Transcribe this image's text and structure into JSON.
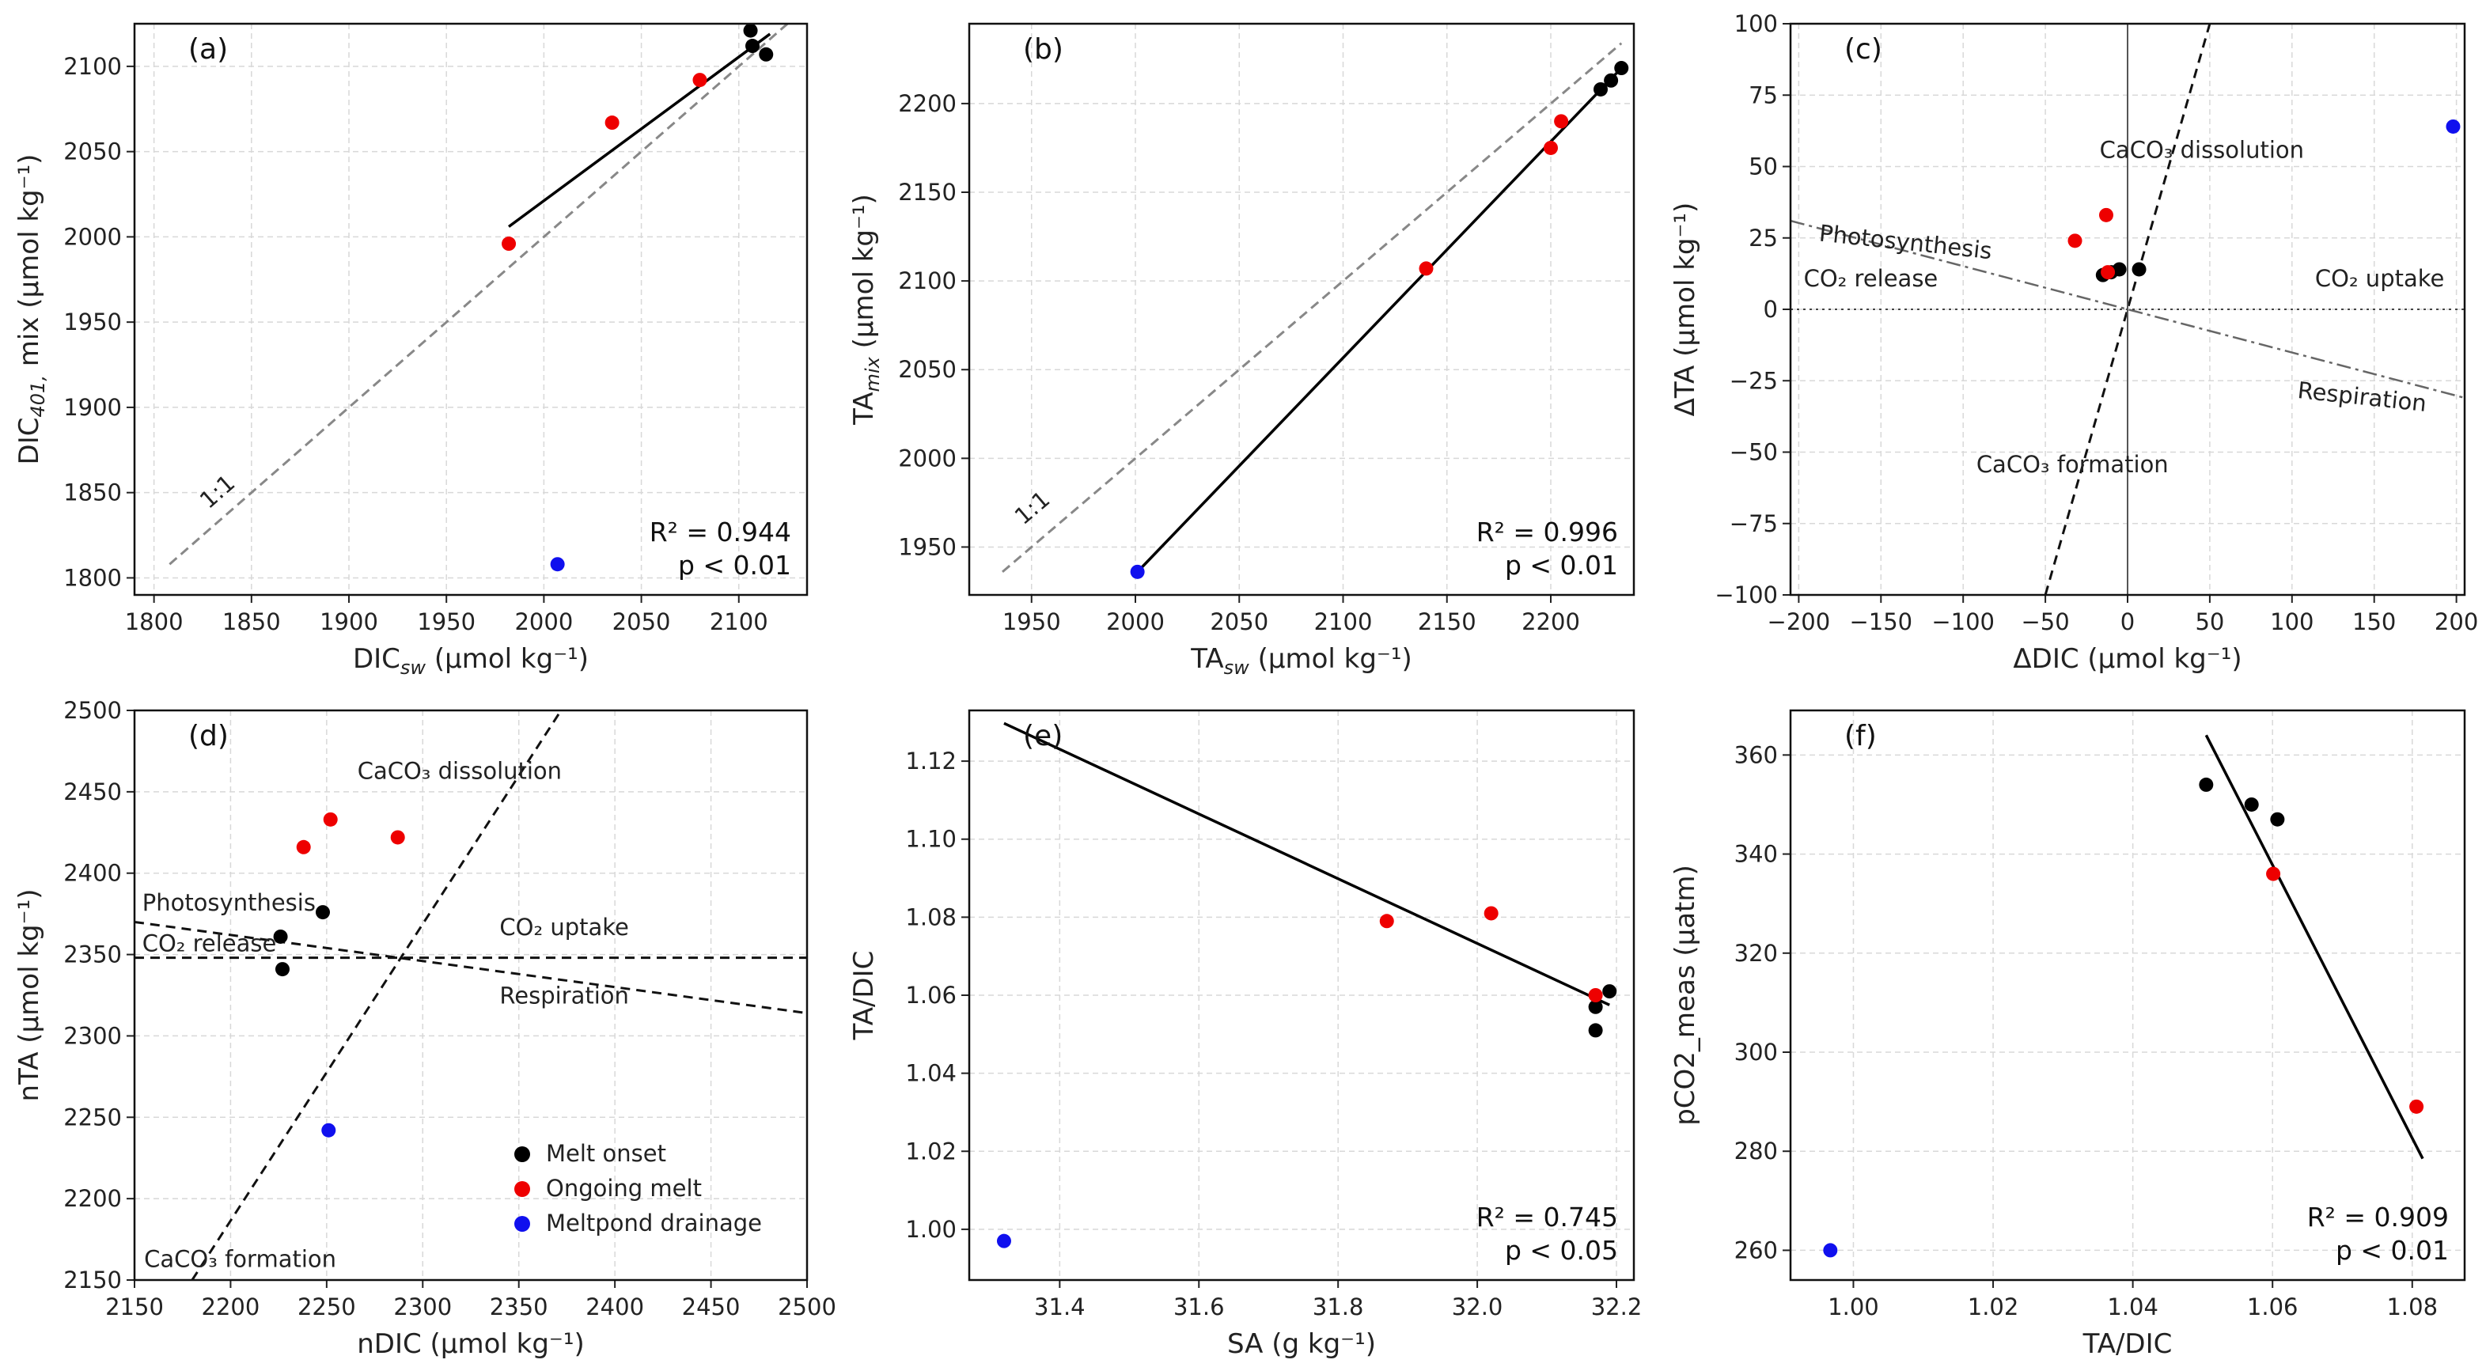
{
  "colors": {
    "melt_onset": "#000000",
    "ongoing_melt": "#ee0000",
    "meltpond_drainage": "#1010ee",
    "grid": "#d8d8d8",
    "one_to_one": "#888888",
    "reference": "#333333"
  },
  "legend": [
    {
      "key": "melt_onset",
      "label": "Melt onset"
    },
    {
      "key": "ongoing_melt",
      "label": "Ongoing melt"
    },
    {
      "key": "meltpond_drainage",
      "label": "Meltpond drainage"
    }
  ],
  "chart_data": [
    {
      "id": "a",
      "panel_label": "(a)",
      "type": "scatter",
      "xlabel": "DIC_sw (µmol kg⁻¹)",
      "ylabel": "DIC_401, mix (µmol kg⁻¹)",
      "xlim": [
        1790,
        2135
      ],
      "ylim": [
        1790,
        2125
      ],
      "xticks": [
        1800,
        1850,
        1900,
        1950,
        2000,
        2050,
        2100
      ],
      "yticks": [
        1800,
        1850,
        1900,
        1950,
        2000,
        2050,
        2100
      ],
      "points": [
        {
          "x": 2106,
          "y": 2121,
          "group": "melt_onset"
        },
        {
          "x": 2107,
          "y": 2112,
          "group": "melt_onset"
        },
        {
          "x": 2114,
          "y": 2107,
          "group": "melt_onset"
        },
        {
          "x": 2080,
          "y": 2092,
          "group": "ongoing_melt"
        },
        {
          "x": 2035,
          "y": 2067,
          "group": "ongoing_melt"
        },
        {
          "x": 1982,
          "y": 1996,
          "group": "ongoing_melt"
        },
        {
          "x": 2007,
          "y": 1808,
          "group": "meltpond_drainage"
        }
      ],
      "fit": {
        "x": [
          1982,
          2116
        ],
        "y": [
          2006,
          2119
        ]
      },
      "one_to_one": {
        "x": [
          1808,
          2125
        ],
        "y": [
          1808,
          2125
        ],
        "label": "1:1",
        "label_at": [
          1828,
          1840
        ]
      },
      "stats": [
        "R² = 0.944",
        "p < 0.01"
      ]
    },
    {
      "id": "b",
      "panel_label": "(b)",
      "type": "scatter",
      "xlabel": "TA_sw (µmol kg⁻¹)",
      "ylabel": "TA_mix (µmol kg⁻¹)",
      "xlim": [
        1920,
        2240
      ],
      "ylim": [
        1923,
        2245
      ],
      "xticks": [
        1950,
        2000,
        2050,
        2100,
        2150,
        2200
      ],
      "yticks": [
        1950,
        2000,
        2050,
        2100,
        2150,
        2200
      ],
      "points": [
        {
          "x": 2234,
          "y": 2220,
          "group": "melt_onset"
        },
        {
          "x": 2229,
          "y": 2213,
          "group": "melt_onset"
        },
        {
          "x": 2224,
          "y": 2208,
          "group": "melt_onset"
        },
        {
          "x": 2205,
          "y": 2190,
          "group": "ongoing_melt"
        },
        {
          "x": 2200,
          "y": 2175,
          "group": "ongoing_melt"
        },
        {
          "x": 2140,
          "y": 2107,
          "group": "ongoing_melt"
        },
        {
          "x": 2001,
          "y": 1936,
          "group": "meltpond_drainage"
        }
      ],
      "fit": {
        "x": [
          2001,
          2234
        ],
        "y": [
          1936,
          2220
        ]
      },
      "one_to_one": {
        "x": [
          1936,
          2234
        ],
        "y": [
          1936,
          2234
        ],
        "label": "1:1",
        "label_at": [
          1946,
          1962
        ]
      },
      "stats": [
        "R² = 0.996",
        "p < 0.01"
      ]
    },
    {
      "id": "c",
      "panel_label": "(c)",
      "type": "scatter",
      "xlabel": "ΔDIC (µmol kg⁻¹)",
      "ylabel": "ΔTA (µmol kg⁻¹)",
      "xlim": [
        -205,
        205
      ],
      "ylim": [
        -100,
        100
      ],
      "xticks": [
        -200,
        -150,
        -100,
        -50,
        0,
        50,
        100,
        150,
        200
      ],
      "yticks": [
        -100,
        -75,
        -50,
        -25,
        0,
        25,
        50,
        75,
        100
      ],
      "points": [
        {
          "x": -15,
          "y": 12,
          "group": "melt_onset"
        },
        {
          "x": -10,
          "y": 13,
          "group": "melt_onset"
        },
        {
          "x": -5,
          "y": 14,
          "group": "melt_onset"
        },
        {
          "x": 7,
          "y": 14,
          "group": "melt_onset"
        },
        {
          "x": -32,
          "y": 24,
          "group": "ongoing_melt"
        },
        {
          "x": -13,
          "y": 33,
          "group": "ongoing_melt"
        },
        {
          "x": -12,
          "y": 13,
          "group": "ongoing_melt"
        },
        {
          "x": 198,
          "y": 64,
          "group": "meltpond_drainage"
        }
      ],
      "reference_lines": [
        {
          "x": [
            -50,
            50
          ],
          "y": [
            -100,
            100
          ],
          "style": "dashed"
        },
        {
          "x": [
            -205,
            205
          ],
          "y": [
            31,
            -31
          ],
          "style": "dashdot"
        },
        {
          "x": [
            -205,
            205
          ],
          "y": [
            0,
            0
          ],
          "style": "dotted"
        },
        {
          "x": [
            0,
            0
          ],
          "y": [
            -100,
            100
          ],
          "style": "solid-thin"
        }
      ],
      "annotations": [
        {
          "text": "CaCO₃ dissolution",
          "x": -17,
          "y": 53,
          "anchor": "start",
          "rotate": 0
        },
        {
          "text": "Photosynthesis",
          "x": -188,
          "y": 24,
          "anchor": "start",
          "rotate": 6
        },
        {
          "text": "CO₂ release",
          "x": -197,
          "y": 8,
          "anchor": "start",
          "rotate": 0
        },
        {
          "text": "CO₂ uptake",
          "x": 114,
          "y": 8,
          "anchor": "start",
          "rotate": 0
        },
        {
          "text": "Respiration",
          "x": 103,
          "y": -31,
          "anchor": "start",
          "rotate": 6
        },
        {
          "text": "CaCO₃ formation",
          "x": -92,
          "y": -57,
          "anchor": "start",
          "rotate": 0
        }
      ],
      "stats": []
    },
    {
      "id": "d",
      "panel_label": "(d)",
      "type": "scatter",
      "xlabel": "nDIC (µmol kg⁻¹)",
      "ylabel": "nTA (µmol kg⁻¹)",
      "xlim": [
        2150,
        2500
      ],
      "ylim": [
        2150,
        2500
      ],
      "xticks": [
        2150,
        2200,
        2250,
        2300,
        2350,
        2400,
        2450,
        2500
      ],
      "yticks": [
        2150,
        2200,
        2250,
        2300,
        2350,
        2400,
        2450,
        2500
      ],
      "points": [
        {
          "x": 2248,
          "y": 2376,
          "group": "melt_onset"
        },
        {
          "x": 2226,
          "y": 2361,
          "group": "melt_onset"
        },
        {
          "x": 2227,
          "y": 2341,
          "group": "melt_onset"
        },
        {
          "x": 2238,
          "y": 2416,
          "group": "ongoing_melt"
        },
        {
          "x": 2252,
          "y": 2433,
          "group": "ongoing_melt"
        },
        {
          "x": 2287,
          "y": 2422,
          "group": "ongoing_melt"
        },
        {
          "x": 2251,
          "y": 2242,
          "group": "meltpond_drainage"
        }
      ],
      "reference_lines": [
        {
          "x": [
            2180,
            2372
          ],
          "y": [
            2150,
            2500
          ],
          "style": "dashed"
        },
        {
          "x": [
            2150,
            2500
          ],
          "y": [
            2370,
            2314
          ],
          "style": "dashed"
        },
        {
          "x": [
            2150,
            2500
          ],
          "y": [
            2348,
            2348
          ],
          "style": "dashed"
        }
      ],
      "annotations": [
        {
          "text": "CaCO₃ dissolution",
          "x": 2266,
          "y": 2458,
          "anchor": "start",
          "rotate": 0
        },
        {
          "text": "Photosynthesis",
          "x": 2154,
          "y": 2377,
          "anchor": "start",
          "rotate": 0
        },
        {
          "text": "CO₂ release",
          "x": 2154,
          "y": 2352,
          "anchor": "start",
          "rotate": 0
        },
        {
          "text": "CO₂ uptake",
          "x": 2340,
          "y": 2362,
          "anchor": "start",
          "rotate": 0
        },
        {
          "text": "Respiration",
          "x": 2340,
          "y": 2320,
          "anchor": "start",
          "rotate": 0
        },
        {
          "text": "CaCO₃ formation",
          "x": 2155,
          "y": 2158,
          "anchor": "start",
          "rotate": 0
        }
      ],
      "legend": true,
      "stats": []
    },
    {
      "id": "e",
      "panel_label": "(e)",
      "type": "scatter",
      "xlabel": "SA (g kg⁻¹)",
      "ylabel": "TA/DIC",
      "xlim": [
        31.27,
        32.225
      ],
      "ylim": [
        0.987,
        1.133
      ],
      "xticks": [
        31.4,
        31.6,
        31.8,
        32.0,
        32.2
      ],
      "xtick_labels": [
        "31.4",
        "31.6",
        "31.8",
        "32.0",
        "32.2"
      ],
      "yticks": [
        1.0,
        1.02,
        1.04,
        1.06,
        1.08,
        1.1,
        1.12
      ],
      "ytick_labels": [
        "1.00",
        "1.02",
        "1.04",
        "1.06",
        "1.08",
        "1.10",
        "1.12"
      ],
      "points": [
        {
          "x": 32.19,
          "y": 1.061,
          "group": "melt_onset"
        },
        {
          "x": 32.17,
          "y": 1.057,
          "group": "melt_onset"
        },
        {
          "x": 32.17,
          "y": 1.051,
          "group": "melt_onset"
        },
        {
          "x": 31.87,
          "y": 1.079,
          "group": "ongoing_melt"
        },
        {
          "x": 32.02,
          "y": 1.081,
          "group": "ongoing_melt"
        },
        {
          "x": 32.17,
          "y": 1.06,
          "group": "ongoing_melt"
        },
        {
          "x": 31.32,
          "y": 0.997,
          "group": "meltpond_drainage"
        }
      ],
      "fit": {
        "x": [
          31.32,
          32.19
        ],
        "y": [
          1.1297,
          1.0575
        ]
      },
      "stats": [
        "R² = 0.745",
        "p < 0.05"
      ]
    },
    {
      "id": "f",
      "panel_label": "(f)",
      "type": "scatter",
      "xlabel": "TA/DIC",
      "ylabel": "pCO2_meas (µatm)",
      "xlim": [
        0.991,
        1.0875
      ],
      "ylim": [
        254,
        369
      ],
      "xticks": [
        1.0,
        1.02,
        1.04,
        1.06,
        1.08
      ],
      "xtick_labels": [
        "1.00",
        "1.02",
        "1.04",
        "1.06",
        "1.08"
      ],
      "yticks": [
        260,
        280,
        300,
        320,
        340,
        360
      ],
      "points": [
        {
          "x": 1.0505,
          "y": 354,
          "group": "melt_onset"
        },
        {
          "x": 1.057,
          "y": 350,
          "group": "melt_onset"
        },
        {
          "x": 1.0607,
          "y": 347,
          "group": "melt_onset"
        },
        {
          "x": 1.0601,
          "y": 336,
          "group": "ongoing_melt"
        },
        {
          "x": 1.0806,
          "y": 289,
          "group": "ongoing_melt"
        },
        {
          "x": 0.9967,
          "y": 260,
          "group": "meltpond_drainage"
        }
      ],
      "fit": {
        "x": [
          1.0505,
          1.0815
        ],
        "y": [
          364,
          278.5
        ]
      },
      "stats": [
        "R² = 0.909",
        "p < 0.01"
      ]
    }
  ]
}
